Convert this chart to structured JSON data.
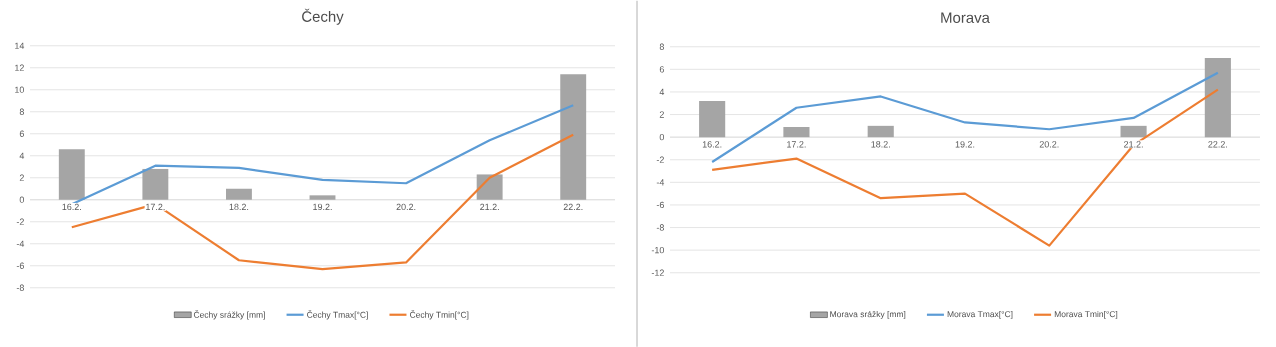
{
  "chart_data": [
    {
      "type": "bar",
      "title": "Čechy",
      "categories": [
        "16.2.",
        "17.2.",
        "18.2.",
        "19.2.",
        "20.2.",
        "21.2.",
        "22.2."
      ],
      "ylim": [
        -8,
        14
      ],
      "yticks": [
        -8,
        -6,
        -4,
        -2,
        0,
        2,
        4,
        6,
        8,
        10,
        12,
        14
      ],
      "grid": "y",
      "legend": "bottom",
      "series": [
        {
          "name": "Čechy srážky [mm]",
          "color": "#a5a5a5",
          "values": [
            4.6,
            2.8,
            1.0,
            0.4,
            0,
            2.3,
            11.4
          ]
        },
        {
          "name": "Čechy Tmax[°C]",
          "type": "line",
          "color": "#5b9bd5",
          "values": [
            -0.4,
            3.1,
            2.9,
            1.8,
            1.5,
            5.4,
            8.6
          ]
        },
        {
          "name": "Čechy Tmin[°C]",
          "type": "line",
          "color": "#ed7d31",
          "values": [
            -2.5,
            -0.4,
            -5.5,
            -6.3,
            -5.7,
            2.0,
            5.9
          ]
        }
      ]
    },
    {
      "type": "bar",
      "title": "Morava",
      "categories": [
        "16.2.",
        "17.2.",
        "18.2.",
        "19.2.",
        "20.2.",
        "21.2.",
        "22.2."
      ],
      "ylim": [
        -12,
        8
      ],
      "yticks": [
        -12,
        -10,
        -8,
        -6,
        -4,
        -2,
        0,
        2,
        4,
        6,
        8
      ],
      "grid": "y",
      "legend": "bottom",
      "series": [
        {
          "name": "Morava srážky [mm]",
          "color": "#a5a5a5",
          "values": [
            3.2,
            0.9,
            1.0,
            0,
            0,
            1.0,
            7.0
          ]
        },
        {
          "name": "Morava Tmax[°C]",
          "type": "line",
          "color": "#5b9bd5",
          "values": [
            -2.2,
            2.6,
            3.6,
            1.3,
            0.7,
            1.7,
            5.7
          ]
        },
        {
          "name": "Morava Tmin[°C]",
          "type": "line",
          "color": "#ed7d31",
          "values": [
            -2.9,
            -1.9,
            -5.4,
            -5.0,
            -9.6,
            -0.7,
            4.2
          ]
        }
      ]
    }
  ]
}
